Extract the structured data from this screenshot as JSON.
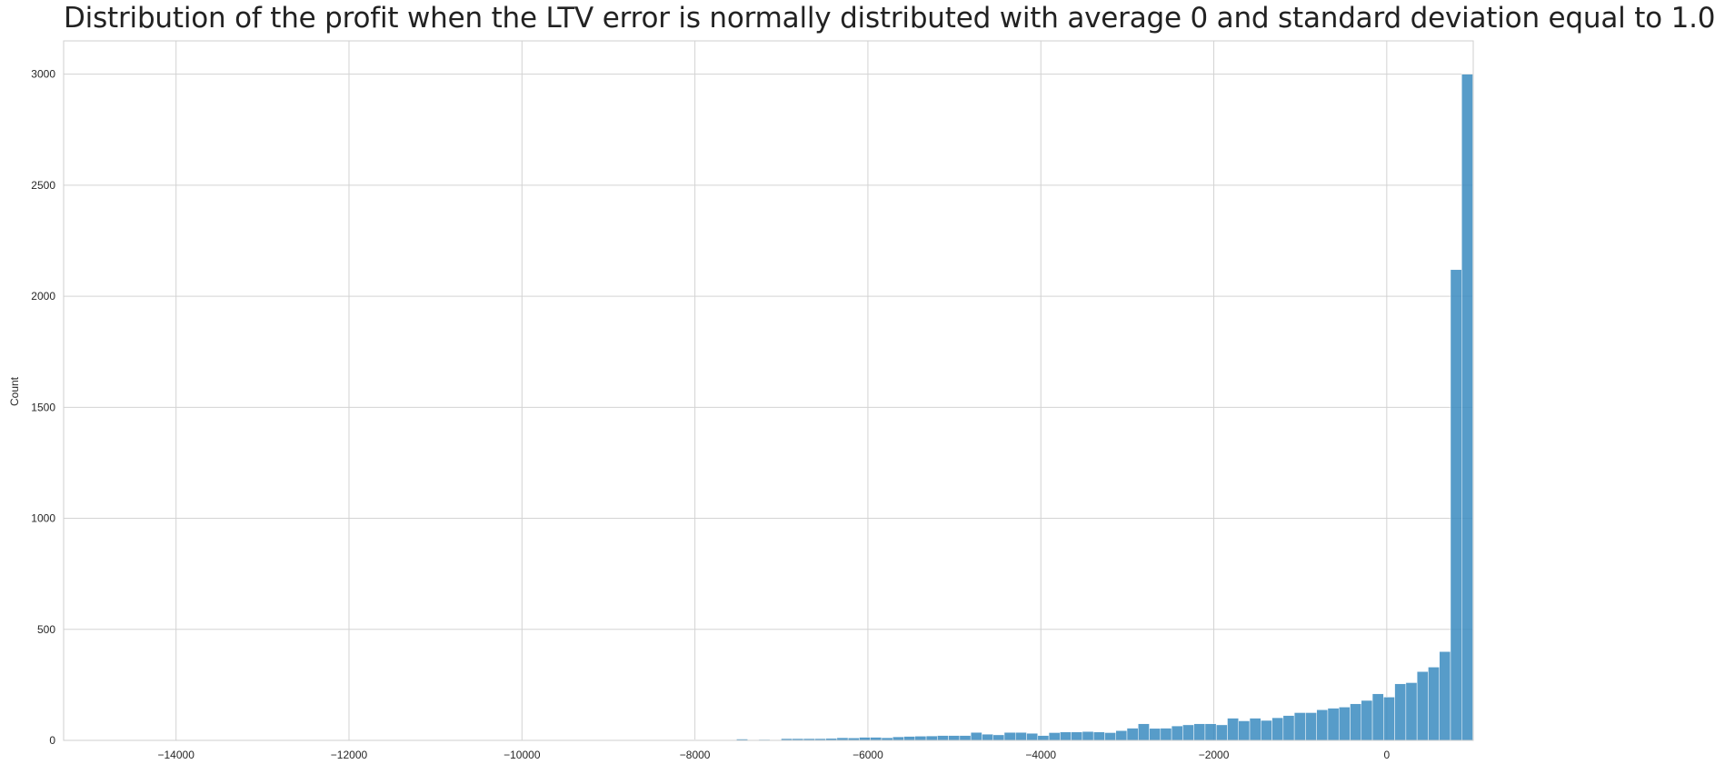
{
  "chart_data": {
    "type": "bar",
    "title": "Distribution of the profit when the LTV error is normally distributed with average 0 and standard deviation equal to 1.0",
    "xlabel": "",
    "ylabel": "Count",
    "xlim": [
      -15300,
      1000
    ],
    "ylim": [
      0,
      3150
    ],
    "x_ticks": [
      -14000,
      -12000,
      -10000,
      -8000,
      -6000,
      -4000,
      -2000,
      0
    ],
    "x_tick_labels": [
      "−14000",
      "−12000",
      "−10000",
      "−8000",
      "−6000",
      "−4000",
      "−2000",
      "0"
    ],
    "y_ticks": [
      0,
      500,
      1000,
      1500,
      2000,
      2500,
      3000
    ],
    "y_tick_labels": [
      "0",
      "500",
      "1000",
      "1500",
      "2000",
      "2500",
      "3000"
    ],
    "grid": true,
    "bar_color": "#3a8bc0",
    "bins": {
      "width": 129,
      "start": -14614,
      "counts": [
        1,
        0,
        0,
        0,
        0,
        0,
        0,
        0,
        0,
        0,
        0,
        0,
        0,
        0,
        0,
        0,
        0,
        0,
        0,
        0,
        0,
        0,
        0,
        0,
        0,
        0,
        0,
        0,
        0,
        0,
        0,
        0,
        0,
        0,
        0,
        0,
        0,
        0,
        0,
        0,
        0,
        0,
        0,
        0,
        0,
        0,
        2,
        0,
        1,
        3,
        3,
        3,
        3,
        0,
        2,
        6,
        0,
        4,
        2,
        8,
        8,
        8,
        8,
        9,
        12,
        11,
        14,
        14,
        12,
        16,
        18,
        19,
        20,
        22,
        22,
        22,
        36,
        28,
        25,
        36,
        36,
        32,
        22,
        35,
        38,
        38,
        40,
        38,
        35,
        44,
        55,
        75,
        54,
        55,
        65,
        70,
        75,
        75,
        70,
        100,
        88,
        100,
        90,
        102,
        112,
        125,
        125,
        138,
        145,
        150,
        165,
        180,
        210,
        195,
        255,
        260,
        310,
        330,
        400,
        2120,
        3000
      ]
    }
  }
}
